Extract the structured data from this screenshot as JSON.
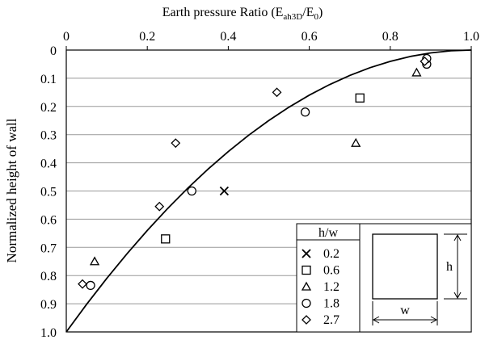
{
  "chart_data": {
    "type": "scatter",
    "xlabel_parts": [
      "Earth pressure Ratio (E",
      "ah3D",
      "/E",
      "0",
      ")"
    ],
    "ylabel": "Normalized height of wall",
    "xlim": [
      0,
      1
    ],
    "ylim": [
      1,
      0
    ],
    "xticks": [
      0,
      0.2,
      0.4,
      0.6,
      0.8,
      {
        "value": 1,
        "label": "1.0"
      }
    ],
    "yticks": [
      0,
      0.1,
      0.2,
      0.3,
      0.4,
      0.5,
      0.6,
      0.7,
      0.8,
      0.9,
      {
        "value": 1,
        "label": "1.0"
      }
    ],
    "grid": true,
    "legend": "lower right",
    "legend_title": "h/w",
    "annotations": [
      "h",
      "w"
    ],
    "series": [
      {
        "name": "0.2",
        "marker": "cross",
        "color": "#000000",
        "x": [
          0.39
        ],
        "values": [
          0.5
        ]
      },
      {
        "name": "0.6",
        "marker": "square",
        "color": "#000000",
        "x": [
          0.245,
          0.725
        ],
        "values": [
          0.67,
          0.17
        ]
      },
      {
        "name": "1.2",
        "marker": "triangle",
        "color": "#000000",
        "x": [
          0.07,
          0.715,
          0.865
        ],
        "values": [
          0.75,
          0.33,
          0.08
        ]
      },
      {
        "name": "1.8",
        "marker": "circle",
        "color": "#000000",
        "x": [
          0.06,
          0.31,
          0.59,
          0.89,
          0.89
        ],
        "values": [
          0.835,
          0.5,
          0.22,
          0.05,
          0.03
        ]
      },
      {
        "name": "2.7",
        "marker": "diamond",
        "color": "#000000",
        "x": [
          0.04,
          0.23,
          0.27,
          0.52,
          0.885
        ],
        "values": [
          0.83,
          0.555,
          0.33,
          0.15,
          0.04
        ]
      },
      {
        "marker": "line",
        "color": "#000000",
        "x": [
          0,
          0.05,
          0.1,
          0.15,
          0.2,
          0.25,
          0.3,
          0.35,
          0.4,
          0.45,
          0.5,
          0.55,
          0.6,
          0.65,
          0.7,
          0.75,
          0.8,
          0.85,
          0.9,
          0.95,
          1
        ],
        "values": [
          1,
          0.9025,
          0.81,
          0.7225,
          0.64,
          0.5625,
          0.49,
          0.4225,
          0.36,
          0.3025,
          0.25,
          0.2025,
          0.16,
          0.1225,
          0.09,
          0.0625,
          0.04,
          0.0225,
          0.01,
          0.0025,
          0
        ]
      }
    ]
  }
}
